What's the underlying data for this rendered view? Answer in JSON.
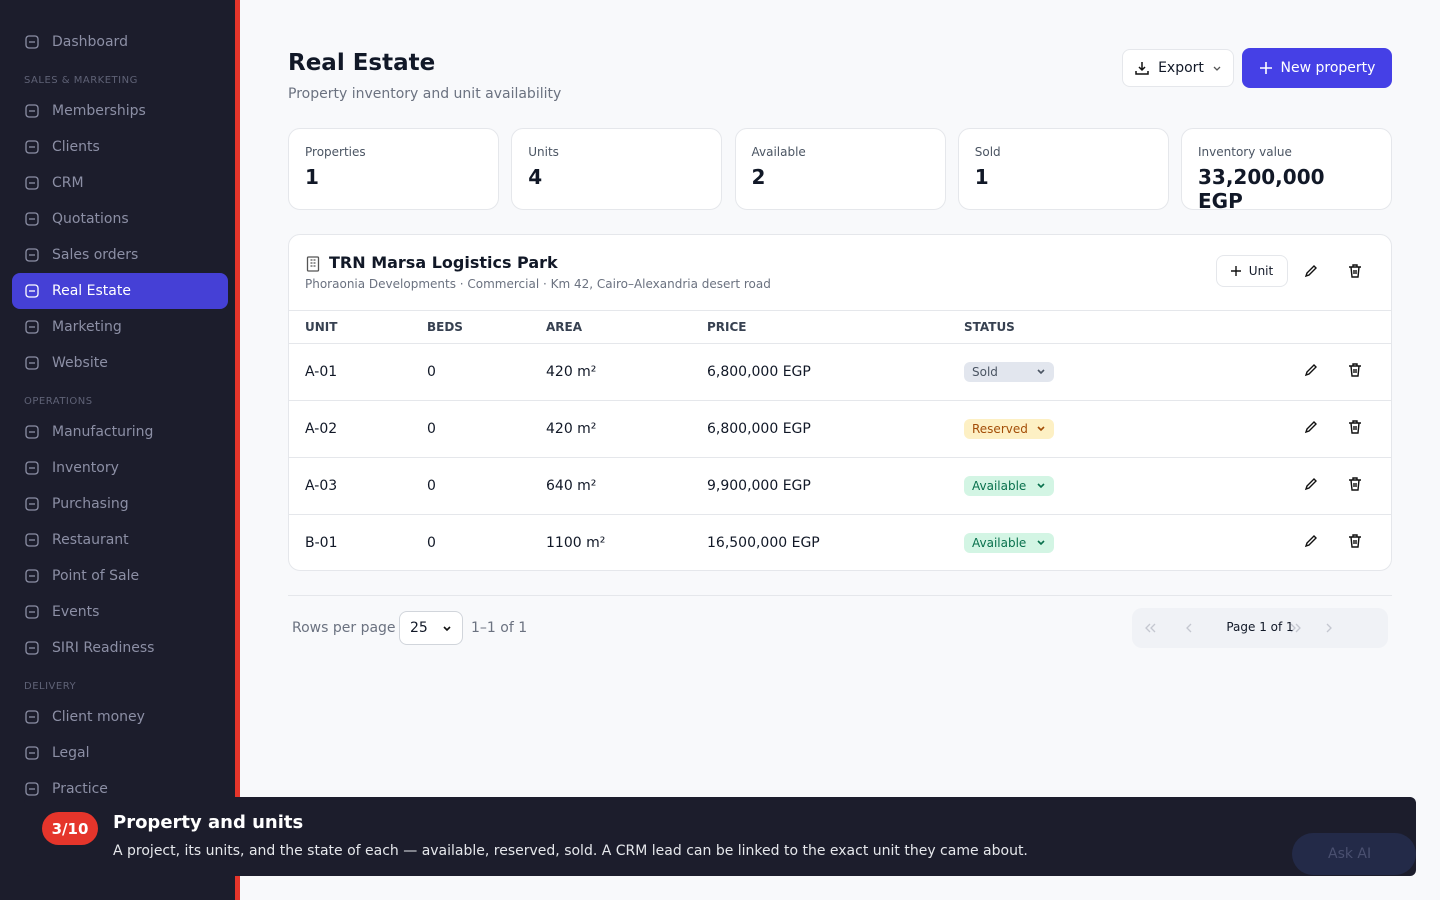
{
  "sidebar": {
    "top": "Dashboard",
    "sections": [
      {
        "label": "SALES & MARKETING",
        "items": [
          "Memberships",
          "Clients",
          "CRM",
          "Quotations",
          "Sales orders",
          "Real Estate",
          "Marketing",
          "Website"
        ]
      },
      {
        "label": "OPERATIONS",
        "items": [
          "Manufacturing",
          "Inventory",
          "Purchasing",
          "Restaurant",
          "Point of Sale",
          "Events",
          "SIRI Readiness"
        ]
      },
      {
        "label": "DELIVERY",
        "items": [
          "Client money",
          "Legal",
          "Practice"
        ]
      }
    ],
    "active": "Real Estate"
  },
  "header": {
    "title": "Real Estate",
    "subtitle": "Property inventory and unit availability",
    "export": "Export",
    "new": "New property"
  },
  "stats": [
    {
      "label": "Properties",
      "value": 1
    },
    {
      "label": "Units",
      "value": 4
    },
    {
      "label": "Available",
      "value": 2
    },
    {
      "label": "Sold",
      "value": 1
    },
    {
      "label": "Inventory value",
      "value": "33,200,000 EGP"
    }
  ],
  "property": {
    "name": "TRN Marsa Logistics Park",
    "meta": "Phoraonia Developments · Commercial · Km 42, Cairo–Alexandria desert road",
    "add_unit": "Unit",
    "columns": [
      "UNIT",
      "BEDS",
      "AREA",
      "PRICE",
      "STATUS"
    ],
    "rows": [
      [
        "A-01",
        0,
        "420 m²",
        "6,800,000 EGP",
        "Sold"
      ],
      [
        "A-02",
        0,
        "420 m²",
        "6,800,000 EGP",
        "Reserved"
      ],
      [
        "A-03",
        0,
        "640 m²",
        "9,900,000 EGP",
        "Available"
      ],
      [
        "B-01",
        0,
        "1100 m²",
        "16,500,000 EGP",
        "Available"
      ]
    ]
  },
  "pagination": {
    "rows_label": "Rows per page",
    "rows_value": 25,
    "range": "1–1 of 1",
    "page": "Page 1 of 1"
  },
  "tour": {
    "step": "3/10",
    "title": "Property and units",
    "text": "A project, its units, and the state of each — available, reserved, sold. A CRM lead can be linked to the exact unit they came about.",
    "ask": "Ask AI"
  }
}
